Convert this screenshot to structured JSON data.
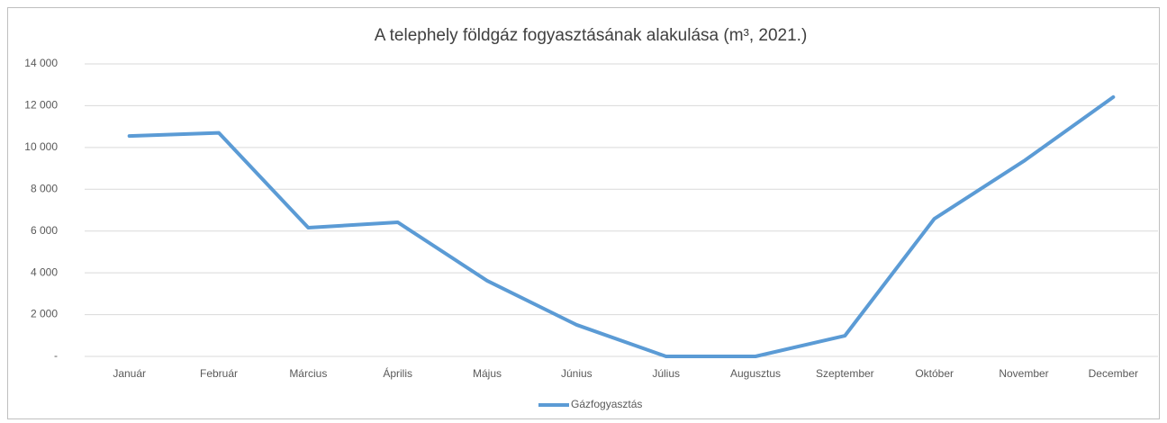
{
  "chart_data": {
    "type": "line",
    "title": "A telephely földgáz fogyasztásának alakulása (m³, 2021.)",
    "categories": [
      "Január",
      "Február",
      "Március",
      "Április",
      "Május",
      "Június",
      "Július",
      "Augusztus",
      "Szeptember",
      "Október",
      "November",
      "December"
    ],
    "series": [
      {
        "name": "Gázfogyasztás",
        "color": "#5b9bd5",
        "values": [
          10550,
          10700,
          6160,
          6420,
          3620,
          1510,
          0,
          0,
          990,
          6590,
          9350,
          12410
        ]
      }
    ],
    "ylim": [
      0,
      14000
    ],
    "yticks": [
      {
        "value": 0,
        "label": "-"
      },
      {
        "value": 2000,
        "label": "2 000"
      },
      {
        "value": 4000,
        "label": "4 000"
      },
      {
        "value": 6000,
        "label": "6 000"
      },
      {
        "value": 8000,
        "label": "8 000"
      },
      {
        "value": 10000,
        "label": "10 000"
      },
      {
        "value": 12000,
        "label": "12 000"
      },
      {
        "value": 14000,
        "label": "14 000"
      }
    ],
    "grid": true,
    "legend": "bottom"
  }
}
